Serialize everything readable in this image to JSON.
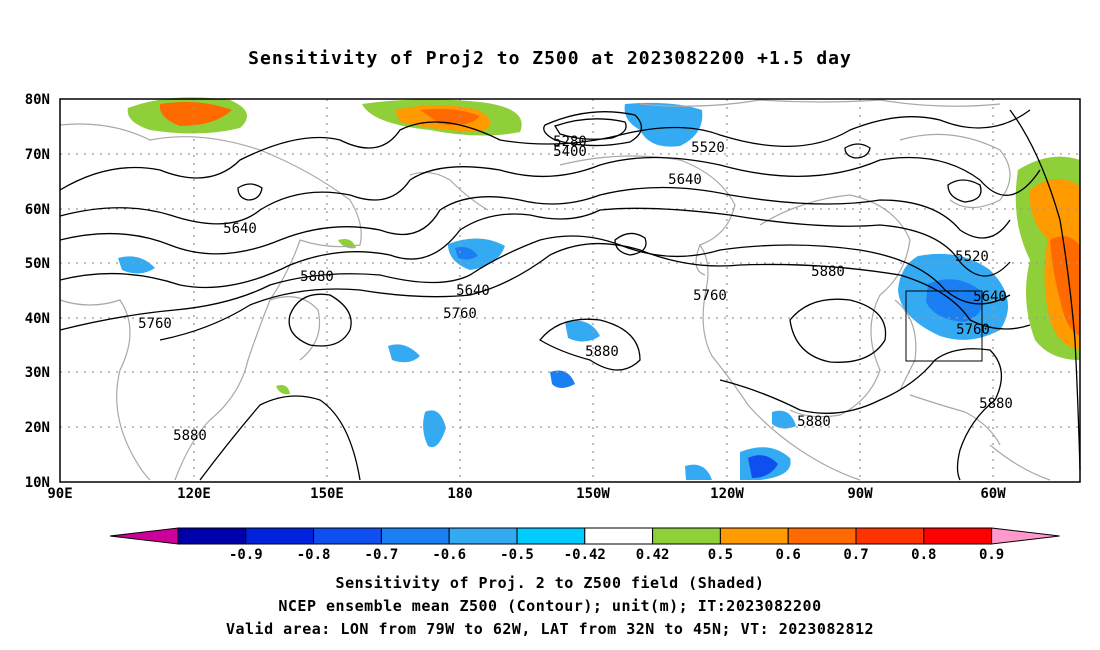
{
  "title": "Sensitivity of Proj2 to Z500 at 2023082200 +1.5 day",
  "lat_labels": [
    "80N",
    "70N",
    "60N",
    "50N",
    "40N",
    "30N",
    "20N",
    "10N"
  ],
  "lon_labels": [
    "90E",
    "120E",
    "150E",
    "180",
    "150W",
    "120W",
    "90W",
    "60W"
  ],
  "contour_labels": [
    "5280",
    "5400",
    "5520",
    "5520",
    "5640",
    "5640",
    "5640",
    "5640",
    "5760",
    "5760",
    "5760",
    "5760",
    "5880",
    "5880",
    "5880",
    "5880",
    "5880",
    "5880"
  ],
  "colorbar": {
    "labels": [
      "-0.9",
      "-0.8",
      "-0.7",
      "-0.6",
      "-0.5",
      "-0.42",
      "0.42",
      "0.5",
      "0.6",
      "0.7",
      "0.8",
      "0.9"
    ],
    "colors": [
      "#cc0099",
      "#0000aa",
      "#0022dd",
      "#0f4ff0",
      "#1a7ff2",
      "#33aaf2",
      "#00ccff",
      "#ffffff",
      "#8fcf3a",
      "#ff9a00",
      "#ff6a00",
      "#ff3300",
      "#ff0000",
      "#ff99cc"
    ]
  },
  "footer": {
    "line1": "Sensitivity of Proj. 2 to Z500 field (Shaded)",
    "line2": "NCEP ensemble mean Z500 (Contour); unit(m); IT:2023082200",
    "line3": "Valid area: LON from 79W to 62W, LAT from 32N to 45N; VT: 2023082812"
  }
}
